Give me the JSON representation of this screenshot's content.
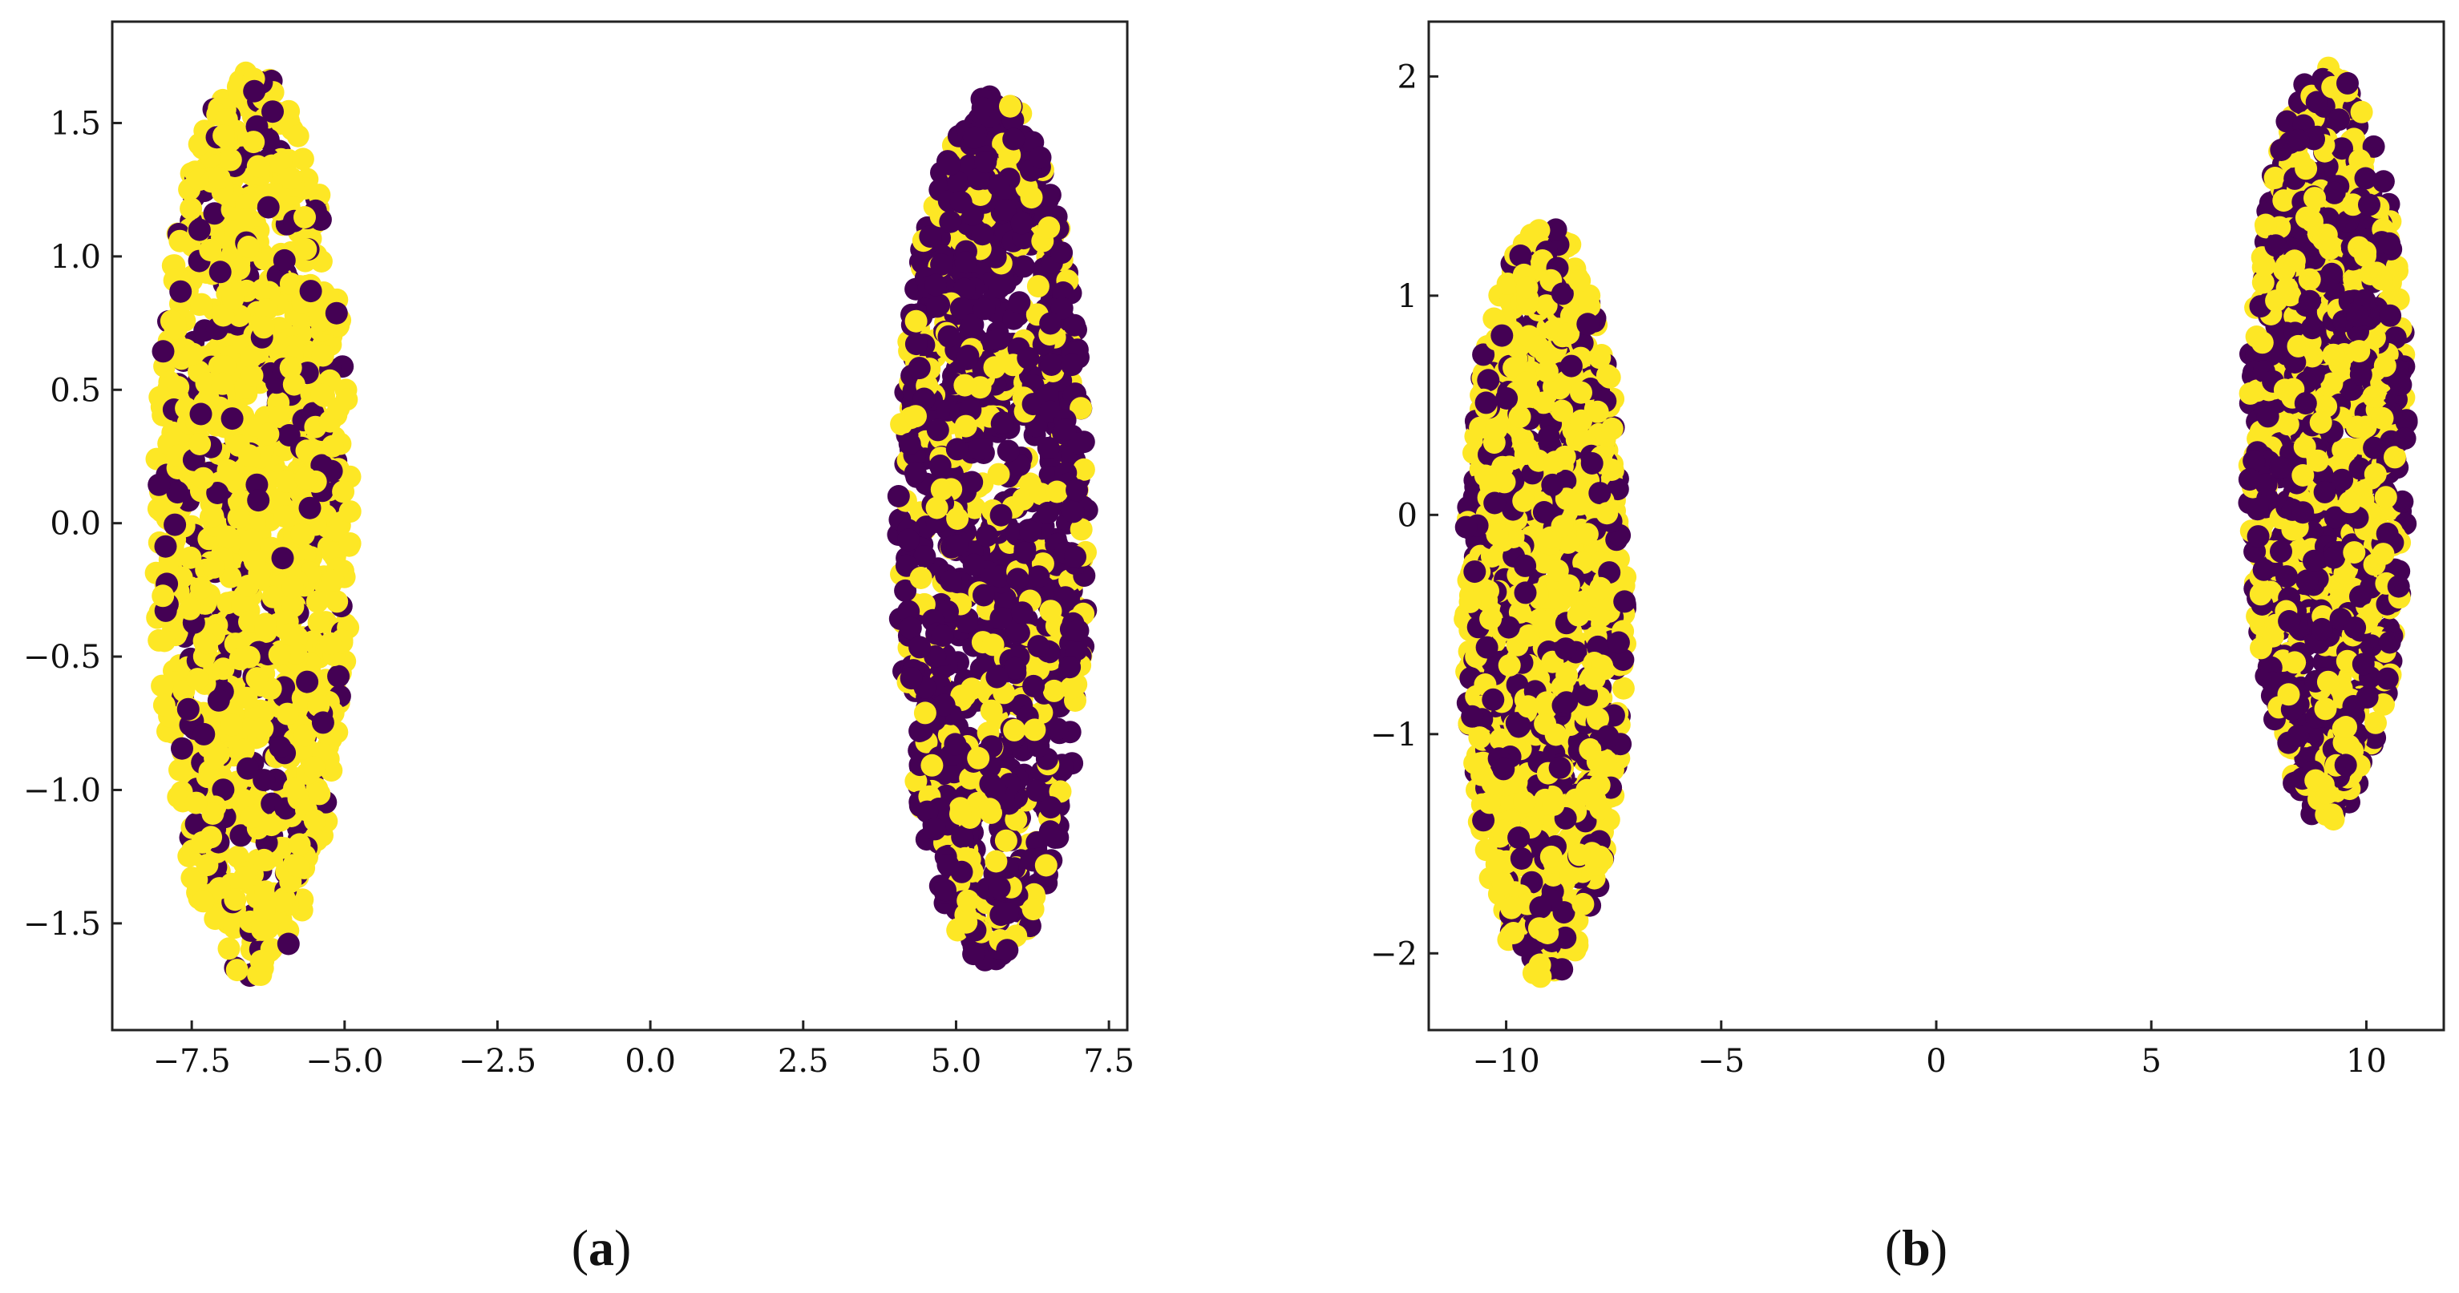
{
  "colors": {
    "class_a": "#440154",
    "class_b": "#fde725",
    "axis": "#222222"
  },
  "chart_data": [
    {
      "type": "scatter",
      "panel": "(a)",
      "panel_letter": "a",
      "title": "",
      "xlabel": "",
      "ylabel": "",
      "xlim": [
        -8.8,
        7.8
      ],
      "ylim": [
        -1.9,
        1.88
      ],
      "xticks": [
        -7.5,
        -5.0,
        -2.5,
        0.0,
        2.5,
        5.0,
        7.5
      ],
      "xtick_labels": [
        "−7.5",
        "−5.0",
        "−2.5",
        "0.0",
        "2.5",
        "5.0",
        "7.5"
      ],
      "yticks": [
        -1.5,
        -1.0,
        -0.5,
        0.0,
        0.5,
        1.0,
        1.5
      ],
      "ytick_labels": [
        "−1.5",
        "−1.0",
        "−0.5",
        "0.0",
        "0.5",
        "1.0",
        "1.5"
      ],
      "clusters": [
        {
          "center": [
            -6.5,
            0.0
          ],
          "x_half_width": 1.6,
          "y_half_height": 1.7,
          "dominant": "#fde725",
          "minority": "#440154",
          "minority_share": 0.22
        },
        {
          "center": [
            5.6,
            -0.02
          ],
          "x_half_width": 1.55,
          "y_half_height": 1.63,
          "dominant": "#440154",
          "minority": "#fde725",
          "minority_share": 0.3
        }
      ]
    },
    {
      "type": "scatter",
      "panel": "(b)",
      "panel_letter": "b",
      "title": "",
      "xlabel": "",
      "ylabel": "",
      "xlim": [
        -11.8,
        11.8
      ],
      "ylim": [
        -2.35,
        2.25
      ],
      "xticks": [
        -10,
        -5,
        0,
        5,
        10
      ],
      "xtick_labels": [
        "−10",
        "−5",
        "0",
        "5",
        "10"
      ],
      "yticks": [
        -2,
        -1,
        0,
        1,
        2
      ],
      "ytick_labels": [
        "−2",
        "−1",
        "0",
        "1",
        "2"
      ],
      "clusters": [
        {
          "center": [
            -9.1,
            -0.4
          ],
          "x_half_width": 1.9,
          "y_half_height": 1.72,
          "dominant": "#fde725",
          "minority": "#440154",
          "minority_share": 0.33
        },
        {
          "center": [
            9.1,
            0.32
          ],
          "x_half_width": 1.85,
          "y_half_height": 1.72,
          "dominant": "#440154",
          "minority": "#fde725",
          "minority_share": 0.45
        }
      ]
    }
  ]
}
